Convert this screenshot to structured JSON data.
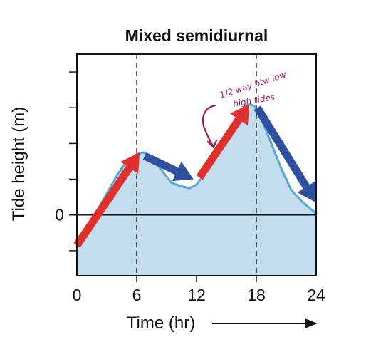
{
  "chart_data": {
    "type": "area",
    "title": "Mixed semidiurnal",
    "xlabel": "Time (hr)",
    "ylabel": "Tide height (m)",
    "x_ticks": [
      "0",
      "6",
      "12",
      "18",
      "24"
    ],
    "y_tick_labels": [
      "0"
    ],
    "xlim": [
      0,
      24
    ],
    "ylim": [
      -1.7,
      4.5
    ],
    "vertical_reference_lines": [
      6,
      18
    ],
    "series": [
      {
        "x": [
          0,
          1,
          2,
          3,
          4,
          5,
          6,
          6.7,
          7.5,
          8.5,
          9.5,
          10.5,
          11.3,
          12,
          12.7,
          13.5,
          14.5,
          15.5,
          16.5,
          17.3,
          17.8,
          18.5,
          19.5,
          20.5,
          21.5,
          22.5,
          23.3,
          24
        ],
        "y": [
          -0.9,
          -0.4,
          0.1,
          0.6,
          1.1,
          1.5,
          1.7,
          1.75,
          1.6,
          1.25,
          0.9,
          0.8,
          0.75,
          0.85,
          1.1,
          1.5,
          2.0,
          2.5,
          2.95,
          3.1,
          3.05,
          2.7,
          2.0,
          1.3,
          0.7,
          0.4,
          0.2,
          0.05
        ],
        "color": "#54a9d6",
        "fill": "#c3ddef"
      }
    ],
    "arrows": [
      {
        "color": "#e0302e",
        "from": [
          0,
          -0.85
        ],
        "to": [
          6.3,
          1.75
        ]
      },
      {
        "color": "#2f4f9f",
        "from": [
          6.8,
          1.65
        ],
        "to": [
          11.7,
          1.0
        ]
      },
      {
        "color": "#e0302e",
        "from": [
          12.3,
          1.05
        ],
        "to": [
          17.3,
          3.1
        ]
      },
      {
        "color": "#2f4f9f",
        "from": [
          18.1,
          3.0
        ],
        "to": [
          24,
          0.35
        ]
      }
    ],
    "annotation": {
      "text_line1": "1/2 way btw low",
      "text_line2": "high tides",
      "color": "#9b1b53"
    }
  }
}
